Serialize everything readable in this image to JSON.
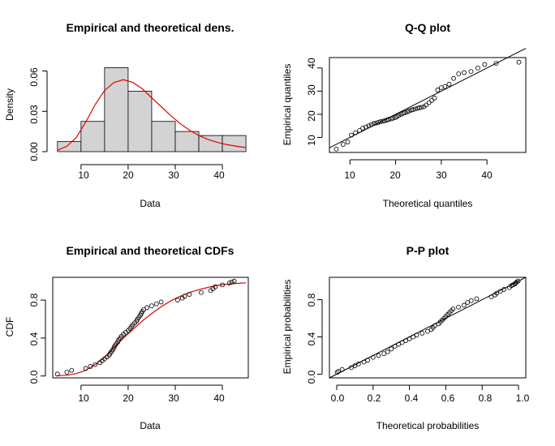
{
  "chart_data": [
    {
      "type": "bar",
      "panel": "density",
      "title": "Empirical and theoretical dens.",
      "xlabel": "Data",
      "ylabel": "Density",
      "xlim": [
        4,
        45.5
      ],
      "ylim": [
        0,
        0.07
      ],
      "x_ticks": [
        10,
        20,
        30,
        40
      ],
      "y_ticks": [
        "0.00",
        "0.03",
        "0.06"
      ],
      "y_tick_values": [
        0,
        0.03,
        0.06
      ],
      "bins": [
        {
          "from": 5,
          "to": 10,
          "density": 0.0075
        },
        {
          "from": 10,
          "to": 15,
          "density": 0.0225
        },
        {
          "from": 15,
          "to": 20,
          "density": 0.0625
        },
        {
          "from": 20,
          "to": 25,
          "density": 0.045
        },
        {
          "from": 25,
          "to": 30,
          "density": 0.0225
        },
        {
          "from": 30,
          "to": 35,
          "density": 0.015
        },
        {
          "from": 35,
          "to": 40,
          "density": 0.012
        },
        {
          "from": 40,
          "to": 45,
          "density": 0.012
        }
      ],
      "curve": {
        "x": [
          5,
          7,
          9,
          11,
          13,
          15,
          17,
          19,
          21,
          23,
          25,
          27,
          29,
          31,
          33,
          35,
          37,
          39,
          41,
          43,
          45
        ],
        "y": [
          0.001,
          0.004,
          0.0105,
          0.022,
          0.035,
          0.0455,
          0.0515,
          0.0535,
          0.0515,
          0.0468,
          0.04,
          0.0335,
          0.027,
          0.021,
          0.016,
          0.012,
          0.009,
          0.0068,
          0.0052,
          0.004,
          0.003
        ],
        "color": "#e00000"
      },
      "bar_color": "#d3d3d3"
    },
    {
      "type": "scatter",
      "panel": "qq",
      "title": "Q-Q plot",
      "xlabel": "Theoretical quantiles",
      "ylabel": "Empirical quantiles",
      "xlim": [
        5.5,
        48.5
      ],
      "ylim": [
        3.5,
        44.5
      ],
      "x_ticks": [
        10,
        20,
        30,
        40
      ],
      "y_ticks": [
        10,
        20,
        30,
        40
      ],
      "reference_line": [
        [
          5.5,
          5.5
        ],
        [
          48.5,
          48.5
        ]
      ],
      "points": [
        [
          7,
          5
        ],
        [
          8.5,
          7
        ],
        [
          9.5,
          8
        ],
        [
          10.3,
          11
        ],
        [
          11.2,
          12
        ],
        [
          12.1,
          13
        ],
        [
          12.8,
          14
        ],
        [
          13.5,
          14.5
        ],
        [
          14.1,
          15
        ],
        [
          14.7,
          15.5
        ],
        [
          15.2,
          16
        ],
        [
          15.7,
          16.2
        ],
        [
          16.2,
          16.5
        ],
        [
          16.7,
          16.8
        ],
        [
          17.2,
          17
        ],
        [
          17.6,
          17.2
        ],
        [
          18.1,
          17.5
        ],
        [
          18.5,
          17.8
        ],
        [
          19,
          18
        ],
        [
          19.4,
          18.3
        ],
        [
          19.9,
          18.6
        ],
        [
          20.3,
          19
        ],
        [
          20.7,
          19.5
        ],
        [
          21.2,
          20
        ],
        [
          21.6,
          20.4
        ],
        [
          22,
          20.7
        ],
        [
          22.5,
          21
        ],
        [
          22.9,
          21.4
        ],
        [
          23.4,
          21.8
        ],
        [
          23.8,
          22
        ],
        [
          24.3,
          22.3
        ],
        [
          24.8,
          22.6
        ],
        [
          25.2,
          22.8
        ],
        [
          25.7,
          23
        ],
        [
          26.2,
          23.3
        ],
        [
          26.7,
          24
        ],
        [
          27.3,
          25
        ],
        [
          27.9,
          26
        ],
        [
          28.5,
          27
        ],
        [
          29.2,
          30.5
        ],
        [
          30,
          31.5
        ],
        [
          30.8,
          32
        ],
        [
          31.7,
          33
        ],
        [
          32.7,
          35.5
        ],
        [
          33.8,
          37.5
        ],
        [
          35,
          38
        ],
        [
          36.5,
          38.5
        ],
        [
          38,
          40
        ],
        [
          39.5,
          41.5
        ],
        [
          42,
          42
        ],
        [
          47,
          42.5
        ]
      ]
    },
    {
      "type": "scatter",
      "panel": "cdf",
      "title": "Empirical and theoretical CDFs",
      "xlabel": "Data",
      "ylabel": "CDF",
      "xlim": [
        4,
        45.5
      ],
      "ylim": [
        -0.02,
        1.04
      ],
      "x_ticks": [
        10,
        20,
        30,
        40
      ],
      "y_ticks": [
        "0.0",
        "0.4",
        "0.8"
      ],
      "y_tick_values": [
        0,
        0.4,
        0.8
      ],
      "points": [
        [
          5,
          0.02
        ],
        [
          7,
          0.04
        ],
        [
          8,
          0.06
        ],
        [
          11,
          0.08
        ],
        [
          12,
          0.1
        ],
        [
          13,
          0.12
        ],
        [
          14,
          0.14
        ],
        [
          14.5,
          0.16
        ],
        [
          15,
          0.18
        ],
        [
          15.5,
          0.2
        ],
        [
          16,
          0.22
        ],
        [
          16.2,
          0.24
        ],
        [
          16.5,
          0.26
        ],
        [
          16.8,
          0.28
        ],
        [
          17,
          0.3
        ],
        [
          17.2,
          0.32
        ],
        [
          17.5,
          0.34
        ],
        [
          17.8,
          0.36
        ],
        [
          18,
          0.38
        ],
        [
          18.3,
          0.4
        ],
        [
          18.6,
          0.42
        ],
        [
          19,
          0.44
        ],
        [
          19.5,
          0.46
        ],
        [
          20,
          0.48
        ],
        [
          20.4,
          0.5
        ],
        [
          20.7,
          0.52
        ],
        [
          21,
          0.54
        ],
        [
          21.4,
          0.56
        ],
        [
          21.8,
          0.58
        ],
        [
          22,
          0.6
        ],
        [
          22.3,
          0.62
        ],
        [
          22.6,
          0.64
        ],
        [
          22.8,
          0.66
        ],
        [
          23,
          0.68
        ],
        [
          23.3,
          0.7
        ],
        [
          24,
          0.72
        ],
        [
          25,
          0.74
        ],
        [
          26,
          0.76
        ],
        [
          27,
          0.78
        ],
        [
          30.5,
          0.8
        ],
        [
          31.5,
          0.82
        ],
        [
          32,
          0.84
        ],
        [
          33,
          0.86
        ],
        [
          35.5,
          0.88
        ],
        [
          37.5,
          0.9
        ],
        [
          38,
          0.92
        ],
        [
          38.5,
          0.94
        ],
        [
          40,
          0.96
        ],
        [
          41.5,
          0.98
        ],
        [
          42,
          0.99
        ],
        [
          42.5,
          1.0
        ]
      ],
      "curve": {
        "x": [
          5,
          7,
          9,
          11,
          13,
          15,
          17,
          19,
          21,
          23,
          25,
          27,
          29,
          31,
          33,
          35,
          37,
          39,
          41,
          43,
          45
        ],
        "y": [
          0.003,
          0.008,
          0.025,
          0.06,
          0.12,
          0.2,
          0.3,
          0.4,
          0.49,
          0.58,
          0.66,
          0.73,
          0.79,
          0.84,
          0.88,
          0.91,
          0.935,
          0.955,
          0.967,
          0.976,
          0.982
        ],
        "color": "#e00000"
      }
    },
    {
      "type": "scatter",
      "panel": "pp",
      "title": "P-P plot",
      "xlabel": "Theoretical probabilities",
      "ylabel": "Empirical probabilities",
      "xlim": [
        -0.04,
        1.04
      ],
      "ylim": [
        -0.04,
        1.04
      ],
      "x_ticks": [
        "0.0",
        "0.2",
        "0.4",
        "0.6",
        "0.8",
        "1.0"
      ],
      "x_tick_values": [
        0,
        0.2,
        0.4,
        0.6,
        0.8,
        1.0
      ],
      "y_ticks": [
        "0.0",
        "0.4",
        "0.8"
      ],
      "y_tick_values": [
        0,
        0.4,
        0.8
      ],
      "reference_line": [
        [
          -0.04,
          -0.04
        ],
        [
          1.04,
          1.04
        ]
      ],
      "points": [
        [
          0.003,
          0.02
        ],
        [
          0.01,
          0.03
        ],
        [
          0.03,
          0.05
        ],
        [
          0.08,
          0.07
        ],
        [
          0.1,
          0.09
        ],
        [
          0.12,
          0.11
        ],
        [
          0.15,
          0.13
        ],
        [
          0.17,
          0.15
        ],
        [
          0.2,
          0.18
        ],
        [
          0.23,
          0.2
        ],
        [
          0.26,
          0.22
        ],
        [
          0.28,
          0.24
        ],
        [
          0.3,
          0.27
        ],
        [
          0.32,
          0.3
        ],
        [
          0.34,
          0.32
        ],
        [
          0.36,
          0.34
        ],
        [
          0.38,
          0.36
        ],
        [
          0.4,
          0.38
        ],
        [
          0.42,
          0.4
        ],
        [
          0.44,
          0.42
        ],
        [
          0.47,
          0.44
        ],
        [
          0.5,
          0.46
        ],
        [
          0.52,
          0.48
        ],
        [
          0.53,
          0.5
        ],
        [
          0.54,
          0.52
        ],
        [
          0.56,
          0.54
        ],
        [
          0.57,
          0.56
        ],
        [
          0.58,
          0.58
        ],
        [
          0.59,
          0.6
        ],
        [
          0.6,
          0.62
        ],
        [
          0.61,
          0.64
        ],
        [
          0.62,
          0.66
        ],
        [
          0.63,
          0.68
        ],
        [
          0.64,
          0.7
        ],
        [
          0.67,
          0.72
        ],
        [
          0.7,
          0.74
        ],
        [
          0.72,
          0.77
        ],
        [
          0.74,
          0.79
        ],
        [
          0.77,
          0.81
        ],
        [
          0.85,
          0.83
        ],
        [
          0.87,
          0.85
        ],
        [
          0.88,
          0.87
        ],
        [
          0.9,
          0.89
        ],
        [
          0.92,
          0.91
        ],
        [
          0.95,
          0.93
        ],
        [
          0.96,
          0.95
        ],
        [
          0.97,
          0.96
        ],
        [
          0.98,
          0.97
        ],
        [
          0.985,
          0.98
        ],
        [
          0.99,
          0.99
        ],
        [
          0.998,
          1.0
        ]
      ]
    }
  ]
}
